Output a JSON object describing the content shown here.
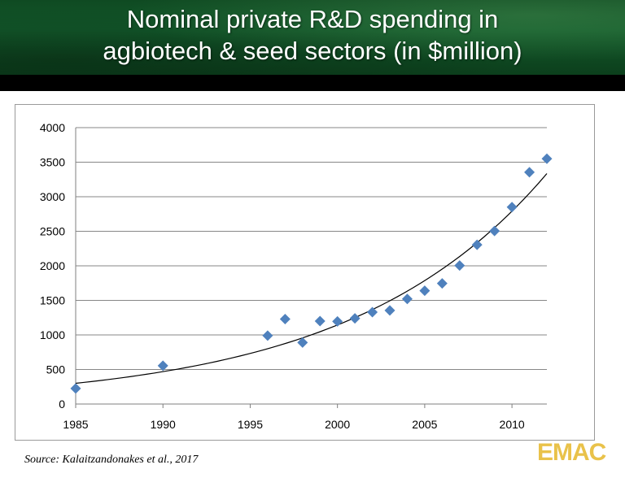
{
  "title_lines": [
    "Nominal private R&D spending in",
    "agbiotech & seed sectors (in $million)"
  ],
  "source": "Source: Kalaitzandonakes et al., 2017",
  "logo_text": "EMAC",
  "colors": {
    "marker": "#4f81bd",
    "header": "#12582a",
    "logo": "#e9c24a"
  },
  "chart_data": {
    "type": "scatter",
    "title": "",
    "xlabel": "",
    "ylabel": "",
    "xlim": [
      1985,
      2012
    ],
    "ylim": [
      0,
      4000
    ],
    "x_ticks": [
      1985,
      1990,
      1995,
      2000,
      2005,
      2010
    ],
    "y_ticks": [
      0,
      500,
      1000,
      1500,
      2000,
      2500,
      3000,
      3500,
      4000
    ],
    "grid": "horizontal",
    "series": [
      {
        "points": [
          [
            1985,
            225
          ],
          [
            1990,
            555
          ],
          [
            1996,
            990
          ],
          [
            1997,
            1230
          ],
          [
            1998,
            890
          ],
          [
            1999,
            1200
          ],
          [
            2000,
            1195
          ],
          [
            2001,
            1240
          ],
          [
            2002,
            1330
          ],
          [
            2003,
            1355
          ],
          [
            2004,
            1520
          ],
          [
            2005,
            1640
          ],
          [
            2006,
            1745
          ],
          [
            2007,
            2005
          ],
          [
            2008,
            2305
          ],
          [
            2009,
            2505
          ],
          [
            2010,
            2850
          ],
          [
            2011,
            3355
          ],
          [
            2012,
            3550
          ]
        ]
      }
    ],
    "trendline": {
      "type": "exponential",
      "a": 300,
      "b": 0.0892,
      "x0": 1985
    }
  }
}
